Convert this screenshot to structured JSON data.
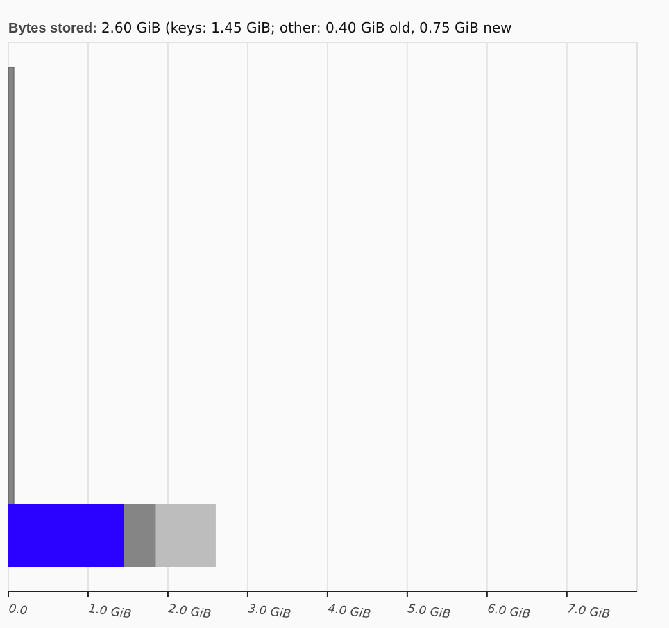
{
  "chart_data": {
    "type": "stacked-bar-horizontal",
    "title_label": "Bytes stored:",
    "title": "2.60 GiB (keys: 1.45 GiB; other: 0.40 GiB old, 0.75 GiB new",
    "categories": [
      null,
      null
    ],
    "series": [
      {
        "color": "#2a00ff",
        "values": [
          null,
          1.45
        ]
      },
      {
        "color": "#858585",
        "values": [
          0.07,
          0.4
        ]
      },
      {
        "color": "#bdbdbd",
        "values": [
          null,
          0.75
        ]
      }
    ],
    "xlim": [
      0,
      7.88
    ],
    "xticks": [
      {
        "value": 0,
        "label": "0.0"
      },
      {
        "value": 1,
        "label": "1.0 GiB"
      },
      {
        "value": 2,
        "label": "2.0 GiB"
      },
      {
        "value": 3,
        "label": "3.0 GiB"
      },
      {
        "value": 4,
        "label": "4.0 GiB"
      },
      {
        "value": 5,
        "label": "5.0 GiB"
      },
      {
        "value": 6,
        "label": "6.0 GiB"
      },
      {
        "value": 7,
        "label": "7.0 GiB"
      }
    ],
    "grid": true
  }
}
